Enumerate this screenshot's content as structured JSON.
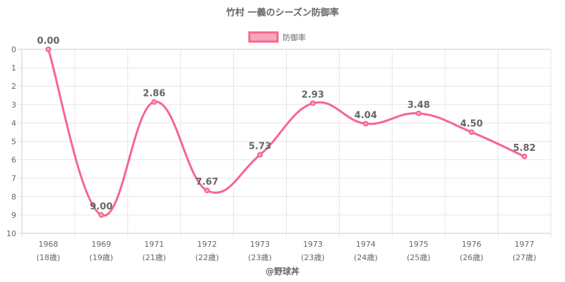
{
  "chart_data": {
    "type": "line",
    "title": "竹村 一義のシーズン防御率",
    "xlabel": "@野球丼",
    "ylabel": "",
    "categories": [
      {
        "year": "1968",
        "age": "(18歳)"
      },
      {
        "year": "1969",
        "age": "(19歳)"
      },
      {
        "year": "1971",
        "age": "(21歳)"
      },
      {
        "year": "1972",
        "age": "(22歳)"
      },
      {
        "year": "1973",
        "age": "(23歳)"
      },
      {
        "year": "1973",
        "age": "(23歳)"
      },
      {
        "year": "1974",
        "age": "(24歳)"
      },
      {
        "year": "1975",
        "age": "(25歳)"
      },
      {
        "year": "1976",
        "age": "(26歳)"
      },
      {
        "year": "1977",
        "age": "(27歳)"
      }
    ],
    "series": [
      {
        "name": "防御率",
        "values": [
          0.0,
          9.0,
          2.86,
          7.67,
          5.73,
          2.93,
          4.04,
          3.48,
          4.5,
          5.82
        ],
        "labels": [
          "0.00",
          "9.00",
          "2.86",
          "7.67",
          "5.73",
          "2.93",
          "4.04",
          "3.48",
          "4.50",
          "5.82"
        ],
        "color": "#f5678d",
        "fill": "#f7a6bc"
      }
    ],
    "ylim": [
      0,
      10
    ],
    "y_reversed": true,
    "yticks": [
      "0",
      "1",
      "2",
      "3",
      "4",
      "5",
      "6",
      "7",
      "8",
      "9",
      "10"
    ],
    "grid": true,
    "legend": "top-center"
  }
}
